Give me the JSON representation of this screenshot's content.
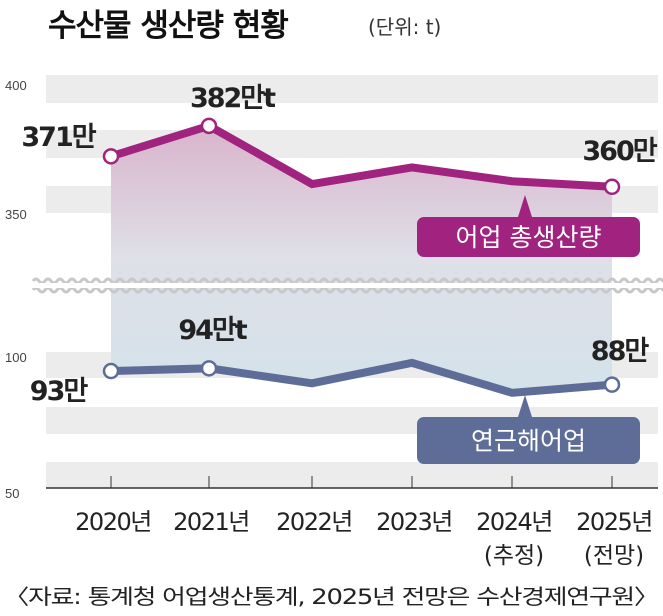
{
  "chart_data": [
    {
      "type": "line",
      "title": "수산물 생산량 현황",
      "unit_note": "(단위: t)",
      "x": [
        "2020년",
        "2021년",
        "2022년",
        "2023년",
        "2024년",
        "2025년"
      ],
      "x_sublabels": [
        "",
        "",
        "",
        "",
        "(추정)",
        "(전망)"
      ],
      "series": [
        {
          "name": "어업 총생산량",
          "values": [
            371,
            382,
            361,
            367,
            362,
            360
          ],
          "color": "#a0237f",
          "labels": [
            "371만",
            "382만t",
            "",
            "",
            "",
            "360만"
          ],
          "ylim": [
            350,
            400
          ],
          "yticks": [
            "400",
            "350"
          ]
        },
        {
          "name": "연근해어업",
          "values": [
            93,
            94,
            88.5,
            96,
            85,
            88
          ],
          "color": "#5d6d97",
          "labels": [
            "93만",
            "94만t",
            "",
            "",
            "",
            "88만"
          ],
          "ylim": [
            50,
            100
          ],
          "yticks": [
            "100",
            "50"
          ]
        }
      ],
      "axis_break": true,
      "grid": "banded",
      "source": "〈자료: 통계청 어업생산통계, 2025년 전망은 수산경제연구원〉"
    }
  ]
}
